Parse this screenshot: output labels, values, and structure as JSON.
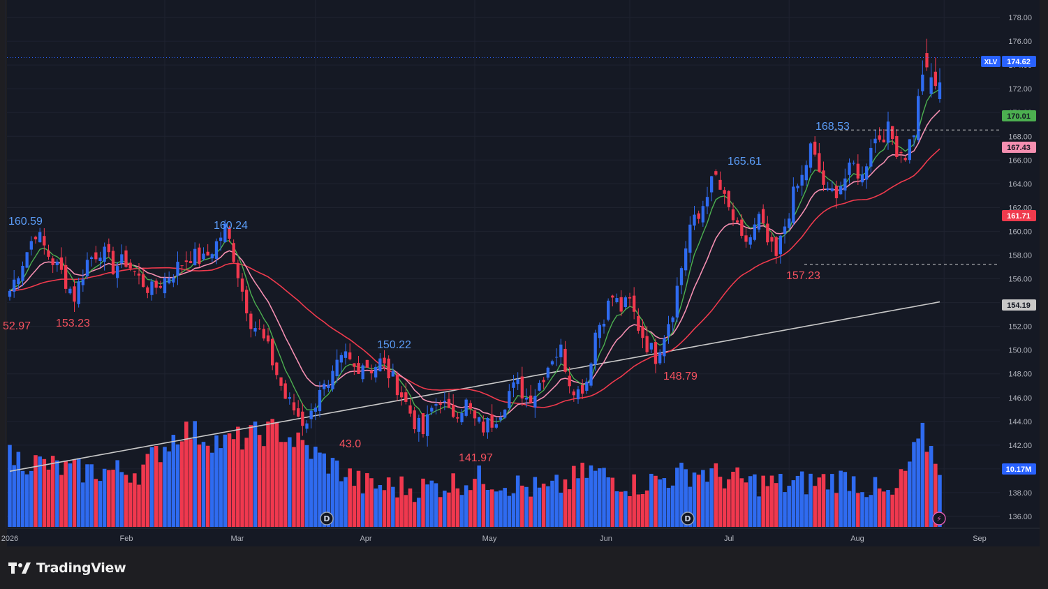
{
  "brand": {
    "name": "TradingView"
  },
  "chart_data": {
    "type": "candlestick",
    "symbol": "XLV",
    "ylim": [
      135,
      179
    ],
    "y_ticks": [
      136,
      138,
      140,
      142,
      144,
      146,
      148,
      150,
      152,
      154,
      156,
      158,
      160,
      162,
      164,
      166,
      168,
      170,
      172,
      174,
      176,
      178
    ],
    "x_ticks": [
      "2026",
      "Feb",
      "Mar",
      "Apr",
      "May",
      "Jun",
      "Jul",
      "Aug",
      "Sep"
    ],
    "colors": {
      "up": "#2f6bf0",
      "down": "#f0384e",
      "ema_fast": "#4caf50",
      "ema_mid": "#f48fb1",
      "sma_50": "#ef3a4d",
      "sma_200": "#c8c8c8"
    },
    "price_labels": [
      {
        "text": "XLV",
        "value": "174.62",
        "color": "#2962ff"
      },
      {
        "value": "170.01",
        "color": "#4caf50"
      },
      {
        "value": "167.43",
        "color": "#f48fb1"
      },
      {
        "value": "161.71",
        "color": "#ef3a4d"
      },
      {
        "value": "154.19",
        "color": "#c8c8c8"
      },
      {
        "value": "10.17M",
        "color": "#2962ff"
      }
    ],
    "annotations": [
      {
        "text": "160.59",
        "type": "high"
      },
      {
        "text": "52.97",
        "type": "low"
      },
      {
        "text": "153.23",
        "type": "low"
      },
      {
        "text": "160.24",
        "type": "high"
      },
      {
        "text": "43.0",
        "type": "low"
      },
      {
        "text": "150.22",
        "type": "high"
      },
      {
        "text": "141.97",
        "type": "low"
      },
      {
        "text": "165.61",
        "type": "high"
      },
      {
        "text": "148.79",
        "type": "low"
      },
      {
        "text": "168.53",
        "type": "high"
      },
      {
        "text": "157.23",
        "type": "low"
      }
    ],
    "dashed_levels": [
      168.53,
      157.23
    ],
    "event_markers": [
      "D",
      "D",
      "⚡"
    ],
    "anchors": [
      [
        0,
        155
      ],
      [
        3,
        157.5
      ],
      [
        6,
        160
      ],
      [
        9,
        158
      ],
      [
        12,
        156.5
      ],
      [
        15,
        154.5
      ],
      [
        18,
        157.5
      ],
      [
        21,
        158.5
      ],
      [
        24,
        157
      ],
      [
        27,
        157.5
      ],
      [
        30,
        156
      ],
      [
        33,
        155
      ],
      [
        36,
        156
      ],
      [
        39,
        157
      ],
      [
        42,
        158
      ],
      [
        45,
        157.5
      ],
      [
        48,
        159
      ],
      [
        50,
        160.24
      ],
      [
        52,
        158
      ],
      [
        54,
        155
      ],
      [
        56,
        152.5
      ],
      [
        58,
        151.5
      ],
      [
        60,
        150
      ],
      [
        62,
        148
      ],
      [
        64,
        146
      ],
      [
        66,
        145
      ],
      [
        68,
        144
      ],
      [
        70,
        144.5
      ],
      [
        72,
        147
      ],
      [
        74,
        146.5
      ],
      [
        76,
        148.5
      ],
      [
        78,
        149.5
      ],
      [
        80,
        148.5
      ],
      [
        82,
        149
      ],
      [
        84,
        148.5
      ],
      [
        86,
        149
      ],
      [
        88,
        148
      ],
      [
        90,
        147
      ],
      [
        92,
        145.5
      ],
      [
        94,
        144
      ],
      [
        96,
        143
      ],
      [
        98,
        145
      ],
      [
        100,
        146
      ],
      [
        102,
        144.5
      ],
      [
        104,
        145
      ],
      [
        106,
        145.5
      ],
      [
        108,
        144
      ],
      [
        110,
        143.5
      ],
      [
        112,
        144
      ],
      [
        114,
        145
      ],
      [
        116,
        146.5
      ],
      [
        118,
        147
      ],
      [
        120,
        146
      ],
      [
        122,
        146.5
      ],
      [
        124,
        148
      ],
      [
        126,
        149.5
      ],
      [
        128,
        150
      ],
      [
        130,
        147.5
      ],
      [
        132,
        146.5
      ],
      [
        134,
        147.5
      ],
      [
        136,
        151.5
      ],
      [
        138,
        153
      ],
      [
        140,
        154.5
      ],
      [
        142,
        153.5
      ],
      [
        144,
        154
      ],
      [
        146,
        152
      ],
      [
        148,
        150.5
      ],
      [
        150,
        149.5
      ],
      [
        152,
        151.5
      ],
      [
        154,
        153.5
      ],
      [
        156,
        157
      ],
      [
        158,
        160.5
      ],
      [
        160,
        161
      ],
      [
        162,
        163.5
      ],
      [
        164,
        164.5
      ],
      [
        166,
        162.5
      ],
      [
        168,
        161
      ],
      [
        170,
        159
      ],
      [
        172,
        159.5
      ],
      [
        174,
        161
      ],
      [
        176,
        159
      ],
      [
        178,
        157.7
      ],
      [
        180,
        160.5
      ],
      [
        182,
        163
      ],
      [
        184,
        164.5
      ],
      [
        186,
        167
      ],
      [
        188,
        165
      ],
      [
        190,
        163
      ],
      [
        192,
        163.5
      ],
      [
        194,
        164.5
      ],
      [
        196,
        165.5
      ],
      [
        198,
        164.5
      ],
      [
        200,
        167.5
      ],
      [
        202,
        168
      ],
      [
        204,
        168.5
      ],
      [
        206,
        167
      ],
      [
        208,
        166.5
      ],
      [
        210,
        168.5
      ],
      [
        212,
        173.5
      ],
      [
        214,
        172.8
      ],
      [
        216,
        172
      ]
    ],
    "volume_anchors": [
      [
        0,
        10
      ],
      [
        15,
        8
      ],
      [
        30,
        8
      ],
      [
        40,
        14
      ],
      [
        50,
        12
      ],
      [
        62,
        14
      ],
      [
        72,
        10
      ],
      [
        82,
        6
      ],
      [
        95,
        5.5
      ],
      [
        110,
        7
      ],
      [
        125,
        5
      ],
      [
        135,
        8
      ],
      [
        145,
        6
      ],
      [
        160,
        8
      ],
      [
        170,
        6.5
      ],
      [
        180,
        6
      ],
      [
        195,
        7
      ],
      [
        205,
        4
      ],
      [
        212,
        13
      ],
      [
        216,
        9
      ]
    ]
  }
}
